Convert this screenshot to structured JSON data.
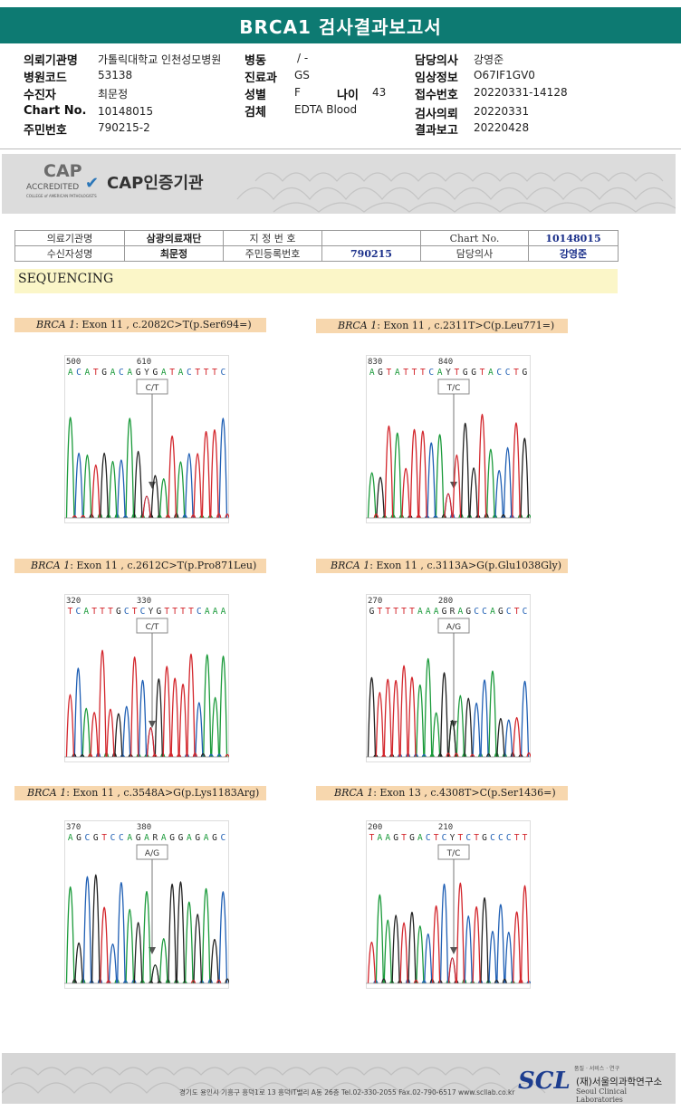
{
  "report": {
    "title": "BRCA1 검사결과보고서"
  },
  "header": {
    "col1": [
      {
        "label": "의뢰기관명",
        "value": "가톨릭대학교 인천성모병원"
      },
      {
        "label": "병원코드",
        "value": "53138"
      },
      {
        "label": "수진자",
        "value": "최문정"
      },
      {
        "label": "Chart No.",
        "value": "10148015"
      },
      {
        "label": "주민번호",
        "value": "790215-2"
      }
    ],
    "col2": [
      {
        "label": "병동",
        "value": "/ -"
      },
      {
        "label": "진료과",
        "value": "GS"
      },
      {
        "label": "성별",
        "value": "F"
      },
      {
        "label": "검체",
        "value": "EDTA Blood"
      }
    ],
    "age": {
      "label": "나이",
      "value": "43"
    },
    "col3": [
      {
        "label": "담당의사",
        "value": "강영준"
      },
      {
        "label": "임상정보",
        "value": "O67IF1GV0"
      },
      {
        "label": "접수번호",
        "value": "20220331-14128"
      },
      {
        "label": "검사의뢰",
        "value": "20220331"
      },
      {
        "label": "결과보고",
        "value": "20220428"
      }
    ]
  },
  "cap": {
    "logo_big": "CAP",
    "logo_sub": "ACCREDITED",
    "logo_tiny": "COLLEGE of AMERICAN PATHOLOGISTS",
    "text": "CAP인증기관"
  },
  "patient_table": {
    "r1": [
      "의료기관명",
      "삼광의료재단",
      "지 정 번 호",
      "",
      "Chart No.",
      "10148015"
    ],
    "r2": [
      "수신자성명",
      "최문정",
      "주민등록번호",
      "790215",
      "담당의사",
      "강영준"
    ]
  },
  "section": {
    "title": "SEQUENCING"
  },
  "variants": [
    {
      "gene": "BRCA 1",
      "desc": ": Exon 11 , c.2082C>T(p.Ser694=)",
      "call": "C/T",
      "pos_left": "500",
      "pos_mid": "610",
      "seq": "ACATGACAGYGATACTTTC"
    },
    {
      "gene": "BRCA 1",
      "desc": ": Exon 11 , c.2311T>C(p.Leu771=)",
      "call": "T/C",
      "pos_left": "830",
      "pos_mid": "840",
      "seq": "AGTATTTCAYTGGTACCTG"
    },
    {
      "gene": "BRCA 1",
      "desc": ": Exon 11 , c.2612C>T(p.Pro871Leu)",
      "call": "C/T",
      "pos_left": "320",
      "pos_mid": "330",
      "seq": "TCATTTGCTCYGTTTTCAAA"
    },
    {
      "gene": "BRCA 1",
      "desc": ": Exon 11 , c.3113A>G(p.Glu1038Gly)",
      "call": "A/G",
      "pos_left": "270",
      "pos_mid": "280",
      "seq": "GTTTTTAAAGRAGCCAGCTC"
    },
    {
      "gene": "BRCA 1",
      "desc": ": Exon 11 , c.3548A>G(p.Lys1183Arg)",
      "call": "A/G",
      "pos_left": "370",
      "pos_mid": "380",
      "seq": "AGCGTCCAGARAGGAGAGC"
    },
    {
      "gene": "BRCA 1",
      "desc": ": Exon 13 , c.4308T>C(p.Ser1436=)",
      "call": "T/C",
      "pos_left": "200",
      "pos_mid": "210",
      "seq": "TAAGTGACTCYTCTGCCCTT"
    }
  ],
  "footer": {
    "address": "경기도 용인시 기흥구 흥덕1로 13 흥덕IT밸리 A동 26층  Tel.02-330-2055  Fax.02-790-6517  www.scllab.co.kr",
    "logo": "SCL",
    "small": "품질 · 서비스 · 연구",
    "name": "(재)서울의과학연구소",
    "name_en": "Seoul Clinical Laboratories"
  },
  "colors": {
    "title_bg": "#0d7a72",
    "A": "#1a9a3a",
    "C": "#1f5fb4",
    "G": "#222222",
    "T": "#d3262c"
  }
}
